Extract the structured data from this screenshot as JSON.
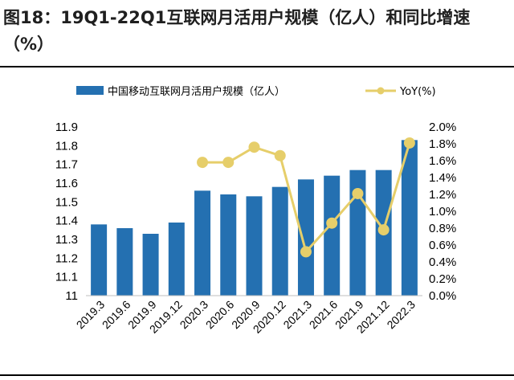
{
  "title": "图18：19Q1-22Q1互联网月活用户规模（亿人）和同比增速（%）",
  "colors": {
    "bar": "#2470B1",
    "line": "#E6CE6A"
  },
  "chart_data": {
    "type": "bar",
    "categories": [
      "2019.3",
      "2019.6",
      "2019.9",
      "2019.12",
      "2020.3",
      "2020.6",
      "2020.9",
      "2020.12",
      "2021.3",
      "2021.6",
      "2021.9",
      "2021.12",
      "2022.3"
    ],
    "series": [
      {
        "name": "中国移动互联网月活用户规模（亿人）",
        "type": "bar",
        "axis": "left",
        "values": [
          11.38,
          11.36,
          11.33,
          11.39,
          11.56,
          11.54,
          11.53,
          11.58,
          11.62,
          11.64,
          11.67,
          11.67,
          11.83
        ]
      },
      {
        "name": "YoY(%)",
        "type": "line",
        "axis": "right",
        "values": [
          null,
          null,
          null,
          null,
          1.58,
          1.58,
          1.76,
          1.66,
          0.52,
          0.86,
          1.21,
          0.78,
          1.81
        ]
      }
    ],
    "y_left": {
      "min": 11,
      "max": 11.9,
      "ticks": [
        "11.9",
        "11.8",
        "11.7",
        "11.6",
        "11.5",
        "11.4",
        "11.3",
        "11.2",
        "11.1",
        "11"
      ]
    },
    "y_right": {
      "min": 0,
      "max": 2.0,
      "ticks": [
        "2.0%",
        "1.8%",
        "1.6%",
        "1.4%",
        "1.2%",
        "1.0%",
        "0.8%",
        "0.6%",
        "0.4%",
        "0.2%",
        "0.0%"
      ]
    },
    "legend": "top",
    "grid": false
  }
}
